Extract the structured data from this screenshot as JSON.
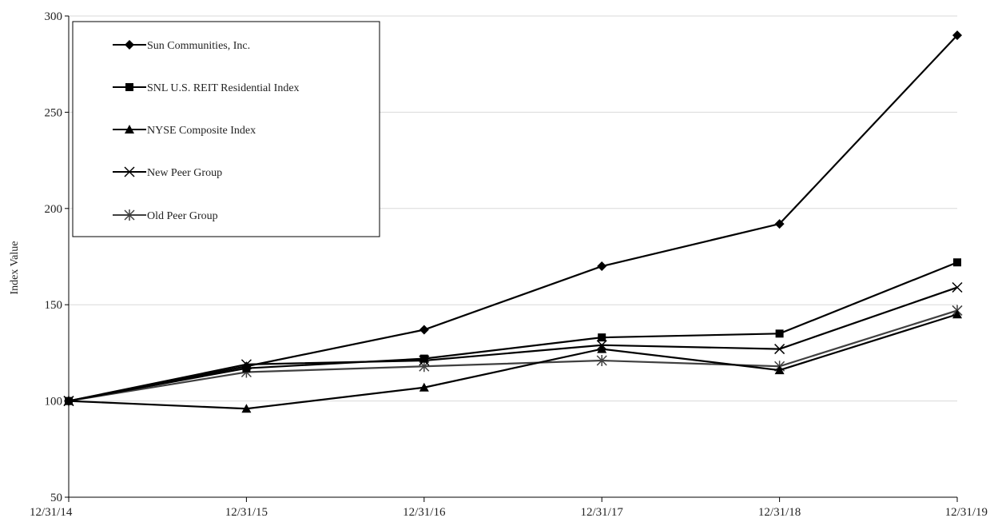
{
  "chart_data": {
    "type": "line",
    "title": "",
    "xlabel": "",
    "ylabel": "Index Value",
    "categories": [
      "12/31/14",
      "12/31/15",
      "12/31/16",
      "12/31/17",
      "12/31/18",
      "12/31/19"
    ],
    "ylim": [
      50,
      300
    ],
    "yticks": [
      50,
      100,
      150,
      200,
      250,
      300
    ],
    "grid": {
      "horizontal": true,
      "vertical": false
    },
    "legend_position": "top-left",
    "series": [
      {
        "name": "Sun Communities, Inc.",
        "marker": "diamond",
        "color": "#000000",
        "values": [
          100,
          118,
          137,
          170,
          192,
          290
        ]
      },
      {
        "name": "SNL U.S. REIT Residential Index",
        "marker": "square",
        "color": "#000000",
        "values": [
          100,
          117,
          122,
          133,
          135,
          172
        ]
      },
      {
        "name": "NYSE Composite Index",
        "marker": "triangle",
        "color": "#000000",
        "values": [
          100,
          96,
          107,
          127,
          116,
          145
        ]
      },
      {
        "name": "New Peer Group",
        "marker": "x",
        "color": "#000000",
        "values": [
          100,
          119,
          121,
          129,
          127,
          159
        ]
      },
      {
        "name": "Old Peer Group",
        "marker": "asterisk",
        "color": "#404040",
        "values": [
          100,
          115,
          118,
          121,
          118,
          147
        ]
      }
    ]
  }
}
